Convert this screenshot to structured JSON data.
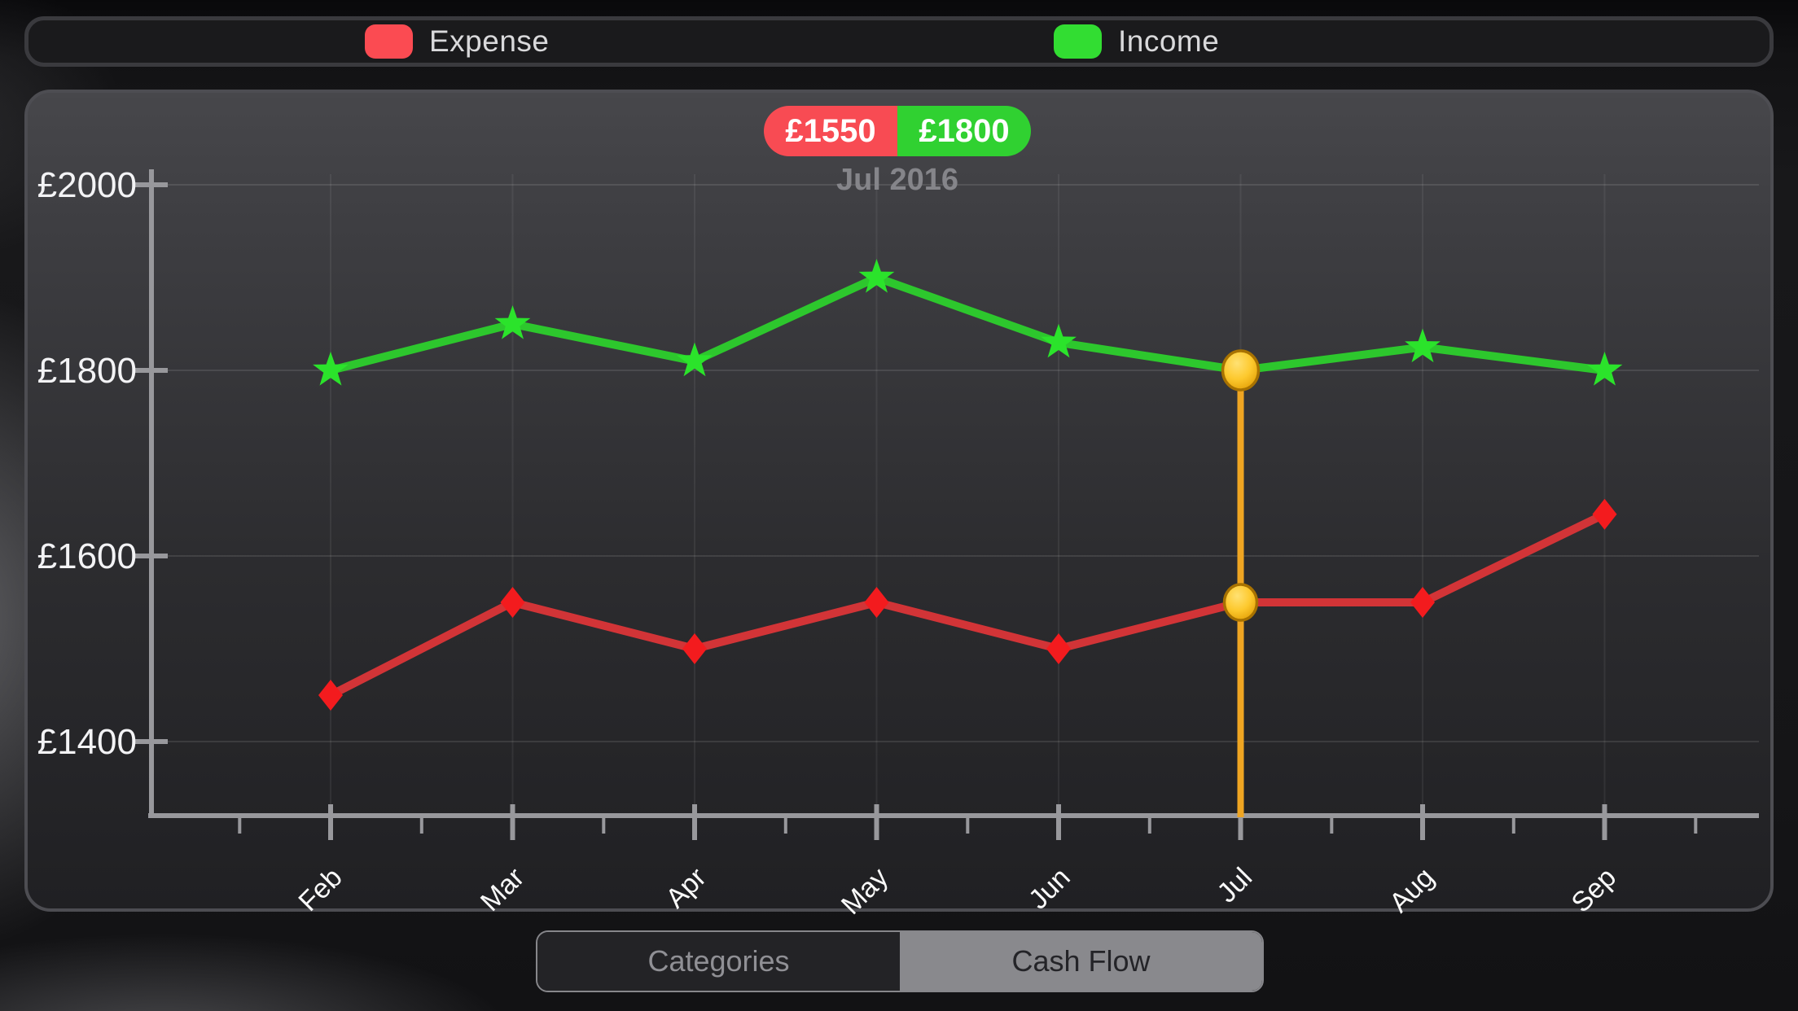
{
  "legend": {
    "expense": {
      "label": "Expense",
      "color": "#fb4b52"
    },
    "income": {
      "label": "Income",
      "color": "#32dd32"
    }
  },
  "tooltip": {
    "expense_value": "£1550",
    "income_value": "£1800",
    "date_label": "Jul 2016",
    "expense_color": "#f84b53",
    "income_color": "#30d131"
  },
  "segmented": {
    "options": [
      {
        "label": "Categories",
        "selected": false
      },
      {
        "label": "Cash Flow",
        "selected": true
      }
    ]
  },
  "chart_data": {
    "type": "line",
    "title": "",
    "x_categories": [
      "Feb",
      "Mar",
      "Apr",
      "May",
      "Jun",
      "Jul",
      "Aug",
      "Sep"
    ],
    "y_ticks": [
      {
        "label": "£2000",
        "value": 2000
      },
      {
        "label": "£1800",
        "value": 1800
      },
      {
        "label": "£1600",
        "value": 1600
      },
      {
        "label": "£1400",
        "value": 1400
      }
    ],
    "ylim": [
      1320,
      2090
    ],
    "grid": true,
    "legend_position": "top",
    "series": [
      {
        "name": "Expense",
        "marker": "diamond",
        "line_color": "#d23437",
        "marker_color": "#f31b1e",
        "values": [
          1450,
          1550,
          1500,
          1550,
          1500,
          1550,
          1550,
          1645
        ]
      },
      {
        "name": "Income",
        "marker": "star",
        "line_color": "#2dc72d",
        "marker_color": "#2be32b",
        "values": [
          1800,
          1850,
          1810,
          1900,
          1830,
          1800,
          1825,
          1800
        ]
      }
    ],
    "selection": {
      "index": 5,
      "x_label": "Jul",
      "expense_value": 1550,
      "income_value": 1800,
      "line_color": "#efa522",
      "dot_stroke": "#a87200",
      "dot_gradient": [
        "#ffe173",
        "#fdc92e",
        "#e09b02"
      ]
    },
    "axis_color": "#98989c",
    "tick_label_color": "#f3f3f5",
    "month_label_color": "#fafafa",
    "gridline_color": "rgba(255,255,255,0.10)",
    "vertical_gridline_color": "rgba(255,255,255,0.065)"
  }
}
